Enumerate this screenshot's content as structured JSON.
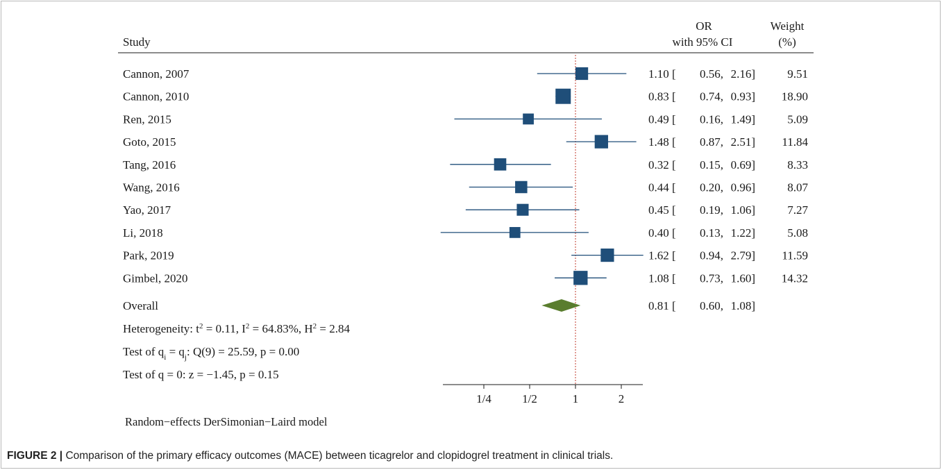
{
  "chart_data": {
    "type": "forest",
    "header": {
      "study_label": "Study",
      "or_label_line1": "OR",
      "or_label_line2": "with 95% CI",
      "weight_label_line1": "Weight",
      "weight_label_line2": "(%)"
    },
    "x_scale": "log2",
    "x_ticks": [
      {
        "value": 0.25,
        "label": "1/4"
      },
      {
        "value": 0.5,
        "label": "1/2"
      },
      {
        "value": 1,
        "label": "1"
      },
      {
        "value": 2,
        "label": "2"
      }
    ],
    "reference_line": 1,
    "studies": [
      {
        "name": "Cannon, 2007",
        "or": 1.1,
        "lo": 0.56,
        "hi": 2.16,
        "or_text": "1.10",
        "lo_text": "0.56",
        "hi_text": "2.16",
        "weight": "9.51",
        "weight_value": 9.51
      },
      {
        "name": "Cannon, 2010",
        "or": 0.83,
        "lo": 0.74,
        "hi": 0.93,
        "or_text": "0.83",
        "lo_text": "0.74",
        "hi_text": "0.93",
        "weight": "18.90",
        "weight_value": 18.9
      },
      {
        "name": "Ren, 2015",
        "or": 0.49,
        "lo": 0.16,
        "hi": 1.49,
        "or_text": "0.49",
        "lo_text": "0.16",
        "hi_text": "1.49",
        "weight": "5.09",
        "weight_value": 5.09
      },
      {
        "name": "Goto, 2015",
        "or": 1.48,
        "lo": 0.87,
        "hi": 2.51,
        "or_text": "1.48",
        "lo_text": "0.87",
        "hi_text": "2.51",
        "weight": "11.84",
        "weight_value": 11.84
      },
      {
        "name": "Tang, 2016",
        "or": 0.32,
        "lo": 0.15,
        "hi": 0.69,
        "or_text": "0.32",
        "lo_text": "0.15",
        "hi_text": "0.69",
        "weight": "8.33",
        "weight_value": 8.33
      },
      {
        "name": "Wang, 2016",
        "or": 0.44,
        "lo": 0.2,
        "hi": 0.96,
        "or_text": "0.44",
        "lo_text": "0.20",
        "hi_text": "0.96",
        "weight": "8.07",
        "weight_value": 8.07
      },
      {
        "name": "Yao, 2017",
        "or": 0.45,
        "lo": 0.19,
        "hi": 1.06,
        "or_text": "0.45",
        "lo_text": "0.19",
        "hi_text": "1.06",
        "weight": "7.27",
        "weight_value": 7.27
      },
      {
        "name": "Li, 2018",
        "or": 0.4,
        "lo": 0.13,
        "hi": 1.22,
        "or_text": "0.40",
        "lo_text": "0.13",
        "hi_text": "1.22",
        "weight": "5.08",
        "weight_value": 5.08
      },
      {
        "name": "Park, 2019",
        "or": 1.62,
        "lo": 0.94,
        "hi": 2.79,
        "or_text": "1.62",
        "lo_text": "0.94",
        "hi_text": "2.79",
        "weight": "11.59",
        "weight_value": 11.59
      },
      {
        "name": "Gimbel, 2020",
        "or": 1.08,
        "lo": 0.73,
        "hi": 1.6,
        "or_text": "1.08",
        "lo_text": "0.73",
        "hi_text": "1.60",
        "weight": "14.32",
        "weight_value": 14.32
      }
    ],
    "overall": {
      "name": "Overall",
      "or": 0.81,
      "lo": 0.6,
      "hi": 1.08,
      "or_text": "0.81",
      "lo_text": "0.60",
      "hi_text": "1.08"
    },
    "heterogeneity": {
      "prefix": "Heterogeneity: t",
      "tau_exp": "2",
      "tau_val": " = 0.11, I",
      "i_exp": "2",
      "i_val": " = 64.83%, H",
      "h_exp": "2",
      "h_val": " = 2.84"
    },
    "test_homog": {
      "prefix": "Test of q",
      "sub1": "i",
      "mid": " = q",
      "sub2": "j",
      "rest": ": Q(9) = 25.59, p = 0.00"
    },
    "test_effect": "Test of q = 0: z = −1.45, p = 0.15",
    "model_note": "Random−effects DerSimonian−Laird model",
    "colors": {
      "square": "#1f4e79",
      "ci_line": "#1f4e79",
      "diamond": "#5a7d2e",
      "ref_line": "#c0392b"
    }
  },
  "caption": {
    "label": "FIGURE 2 |",
    "text": " Comparison of the primary efficacy outcomes (MACE) between ticagrelor and clopidogrel treatment in clinical trials."
  }
}
